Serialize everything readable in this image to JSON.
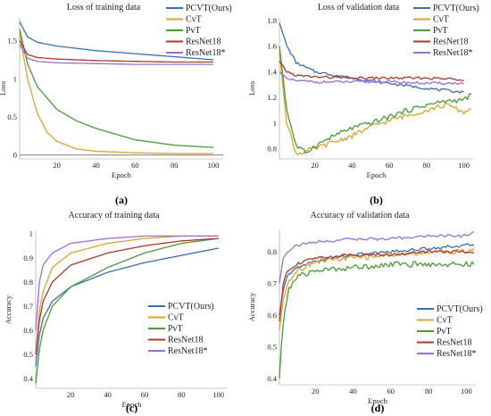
{
  "colors": {
    "pcvt": "#3b6db3",
    "cvt": "#d7a534",
    "pvt": "#4a9a3a",
    "resnet18": "#a8392b",
    "resnet18s": "#9b6fcf"
  },
  "chart_data": [
    {
      "panel": "a",
      "type": "line",
      "title": "Loss of training data",
      "xlabel": "Epoch",
      "ylabel": "Loss",
      "caption": "(a)",
      "legend_position": "top-right",
      "xlim": [
        1,
        105
      ],
      "ylim": [
        -0.05,
        1.8
      ],
      "xticks": [
        20,
        40,
        60,
        80,
        100
      ],
      "yticks": [
        0,
        0.5,
        1,
        1.5
      ],
      "ytick_labels": [
        "0",
        "0.5",
        "1",
        "1.5"
      ],
      "zero_line": true,
      "series": [
        {
          "name": "PCVT(Ours)",
          "x": [
            1,
            5,
            10,
            20,
            40,
            60,
            80,
            100
          ],
          "y": [
            1.75,
            1.55,
            1.48,
            1.43,
            1.37,
            1.33,
            1.29,
            1.25
          ]
        },
        {
          "name": "CvT",
          "x": [
            1,
            5,
            10,
            15,
            20,
            30,
            40,
            60,
            80,
            100
          ],
          "y": [
            1.6,
            1.0,
            0.55,
            0.3,
            0.18,
            0.08,
            0.05,
            0.03,
            0.02,
            0.02
          ]
        },
        {
          "name": "PvT",
          "x": [
            1,
            5,
            10,
            20,
            30,
            40,
            60,
            80,
            100
          ],
          "y": [
            1.65,
            1.2,
            0.9,
            0.6,
            0.45,
            0.35,
            0.2,
            0.13,
            0.1
          ]
        },
        {
          "name": "ResNet18",
          "x": [
            1,
            5,
            10,
            20,
            40,
            60,
            80,
            100
          ],
          "y": [
            1.5,
            1.32,
            1.28,
            1.26,
            1.24,
            1.23,
            1.22,
            1.22
          ]
        },
        {
          "name": "ResNet18*",
          "x": [
            1,
            5,
            10,
            20,
            40,
            60,
            80,
            100
          ],
          "y": [
            1.45,
            1.27,
            1.23,
            1.21,
            1.2,
            1.19,
            1.19,
            1.19
          ]
        }
      ]
    },
    {
      "panel": "b",
      "type": "line",
      "title": "Loss of validation data",
      "xlabel": "Epoch",
      "ylabel": "Loss",
      "caption": "(b)",
      "legend_position": "top-right",
      "xlim": [
        1,
        105
      ],
      "ylim": [
        0.72,
        1.82
      ],
      "xticks": [
        20,
        40,
        60,
        80,
        100
      ],
      "yticks": [
        0.8,
        1,
        1.2,
        1.4,
        1.6,
        1.8
      ],
      "ytick_labels": [
        "0.8",
        "1",
        "1.2",
        "1.4",
        "1.6",
        "1.8"
      ],
      "series": [
        {
          "name": "PCVT(Ours)",
          "x": [
            1,
            5,
            10,
            20,
            40,
            60,
            80,
            100
          ],
          "y": [
            1.78,
            1.6,
            1.47,
            1.4,
            1.35,
            1.31,
            1.27,
            1.24
          ]
        },
        {
          "name": "CvT",
          "x": [
            1,
            5,
            10,
            15,
            20,
            30,
            40,
            50,
            60,
            70,
            80,
            90,
            95,
            100,
            104
          ],
          "y": [
            1.55,
            1.0,
            0.76,
            0.78,
            0.8,
            0.85,
            0.9,
            0.97,
            1.02,
            1.06,
            1.1,
            1.14,
            1.12,
            1.08,
            1.12
          ]
        },
        {
          "name": "PvT",
          "x": [
            1,
            5,
            10,
            15,
            20,
            30,
            40,
            50,
            60,
            70,
            80,
            90,
            100,
            104
          ],
          "y": [
            1.6,
            1.1,
            0.82,
            0.77,
            0.82,
            0.9,
            0.96,
            1.0,
            1.05,
            1.1,
            1.14,
            1.17,
            1.18,
            1.22
          ]
        },
        {
          "name": "ResNet18",
          "x": [
            1,
            5,
            10,
            20,
            40,
            60,
            80,
            100
          ],
          "y": [
            1.48,
            1.4,
            1.37,
            1.36,
            1.35,
            1.35,
            1.35,
            1.34
          ]
        },
        {
          "name": "ResNet18*",
          "x": [
            1,
            5,
            10,
            20,
            40,
            60,
            80,
            100
          ],
          "y": [
            1.4,
            1.34,
            1.33,
            1.32,
            1.32,
            1.32,
            1.31,
            1.31
          ]
        }
      ]
    },
    {
      "panel": "c",
      "type": "line",
      "title": "Accuracy of training data",
      "xlabel": "Epoch",
      "ylabel": "Accuracy",
      "caption": "(c)",
      "legend_position": "bottom-right",
      "xlim": [
        1,
        105
      ],
      "ylim": [
        0.36,
        1.01
      ],
      "xticks": [
        20,
        40,
        60,
        80,
        100
      ],
      "yticks": [
        0.4,
        0.5,
        0.6,
        0.7,
        0.8,
        0.9,
        1
      ],
      "ytick_labels": [
        "0.4",
        "0.5",
        "0.6",
        "0.7",
        "0.8",
        "0.9",
        "1"
      ],
      "series": [
        {
          "name": "PCVT(Ours)",
          "x": [
            1,
            3,
            5,
            10,
            20,
            40,
            60,
            80,
            100
          ],
          "y": [
            0.45,
            0.58,
            0.65,
            0.72,
            0.78,
            0.84,
            0.88,
            0.91,
            0.94
          ]
        },
        {
          "name": "CvT",
          "x": [
            1,
            3,
            5,
            10,
            20,
            40,
            60,
            80,
            100
          ],
          "y": [
            0.5,
            0.68,
            0.76,
            0.86,
            0.92,
            0.96,
            0.98,
            0.99,
            0.99
          ]
        },
        {
          "name": "PvT",
          "x": [
            1,
            3,
            5,
            10,
            20,
            40,
            60,
            80,
            100
          ],
          "y": [
            0.38,
            0.52,
            0.6,
            0.7,
            0.78,
            0.86,
            0.92,
            0.96,
            0.98
          ]
        },
        {
          "name": "ResNet18",
          "x": [
            1,
            3,
            5,
            10,
            20,
            40,
            60,
            80,
            100
          ],
          "y": [
            0.5,
            0.64,
            0.72,
            0.8,
            0.87,
            0.92,
            0.95,
            0.97,
            0.98
          ]
        },
        {
          "name": "ResNet18*",
          "x": [
            1,
            3,
            5,
            10,
            20,
            40,
            60,
            80,
            100
          ],
          "y": [
            0.6,
            0.8,
            0.87,
            0.92,
            0.96,
            0.98,
            0.99,
            0.99,
            0.99
          ]
        }
      ]
    },
    {
      "panel": "d",
      "type": "line",
      "title": "Accuracy of validation data",
      "xlabel": "Epoch",
      "ylabel": "Accuracy",
      "caption": "(d)",
      "legend_position": "bottom-right",
      "xlim": [
        1,
        105
      ],
      "ylim": [
        0.38,
        0.87
      ],
      "xticks": [
        20,
        40,
        60,
        80,
        100
      ],
      "yticks": [
        0.4,
        0.5,
        0.6,
        0.7,
        0.8
      ],
      "ytick_labels": [
        "0.4",
        "0.5",
        "0.6",
        "0.7",
        "0.8"
      ],
      "series": [
        {
          "name": "PCVT(Ours)",
          "x": [
            1,
            3,
            5,
            10,
            20,
            40,
            60,
            80,
            100,
            104
          ],
          "y": [
            0.6,
            0.68,
            0.72,
            0.75,
            0.77,
            0.79,
            0.8,
            0.81,
            0.82,
            0.82
          ]
        },
        {
          "name": "CvT",
          "x": [
            1,
            3,
            5,
            10,
            20,
            40,
            60,
            80,
            100,
            104
          ],
          "y": [
            0.55,
            0.65,
            0.7,
            0.74,
            0.77,
            0.78,
            0.79,
            0.8,
            0.8,
            0.81
          ]
        },
        {
          "name": "PvT",
          "x": [
            1,
            2,
            4,
            6,
            10,
            20,
            40,
            60,
            80,
            100,
            104
          ],
          "y": [
            0.4,
            0.5,
            0.62,
            0.68,
            0.72,
            0.74,
            0.75,
            0.76,
            0.76,
            0.76,
            0.76
          ]
        },
        {
          "name": "ResNet18",
          "x": [
            1,
            3,
            5,
            10,
            20,
            40,
            60,
            80,
            100,
            104
          ],
          "y": [
            0.58,
            0.7,
            0.74,
            0.76,
            0.78,
            0.79,
            0.79,
            0.8,
            0.8,
            0.8
          ]
        },
        {
          "name": "ResNet18*",
          "x": [
            1,
            3,
            5,
            10,
            20,
            40,
            60,
            80,
            100,
            104
          ],
          "y": [
            0.7,
            0.78,
            0.8,
            0.82,
            0.83,
            0.84,
            0.84,
            0.85,
            0.85,
            0.86
          ]
        }
      ]
    }
  ]
}
